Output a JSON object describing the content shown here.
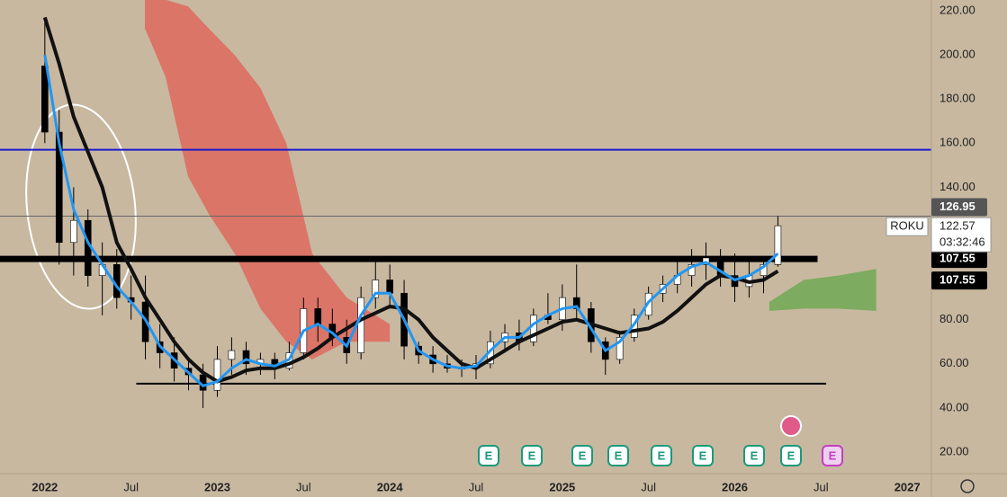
{
  "chart_data": {
    "type": "candlestick",
    "symbol": "ROKU",
    "countdown": "03:32:46",
    "x": [
      2022,
      2022.083,
      2022.167,
      2022.25,
      2022.333,
      2022.417,
      2022.5,
      2022.583,
      2022.667,
      2022.75,
      2022.833,
      2022.917,
      2023,
      2023.083,
      2023.167,
      2023.25,
      2023.333,
      2023.417,
      2023.5,
      2023.583,
      2023.667,
      2023.75,
      2023.833,
      2023.917,
      2024,
      2024.083,
      2024.167,
      2024.25,
      2024.333,
      2024.417,
      2024.5,
      2024.583,
      2024.667,
      2024.75,
      2024.833,
      2024.917,
      2025,
      2025.083,
      2025.167,
      2025.25,
      2025.333,
      2025.417,
      2025.5,
      2025.583,
      2025.667,
      2025.75,
      2025.833,
      2025.917,
      2026,
      2026.083,
      2026.167,
      2026.25
    ],
    "open": [
      195,
      165,
      115,
      125,
      100,
      105,
      90,
      88,
      70,
      65,
      58,
      55,
      48,
      62,
      66,
      60,
      62,
      58,
      65,
      85,
      78,
      72,
      65,
      90,
      98,
      92,
      68,
      64,
      60,
      58,
      58,
      60,
      70,
      74,
      70,
      82,
      80,
      90,
      85,
      70,
      62,
      72,
      82,
      92,
      96,
      100,
      105,
      108,
      100,
      95,
      100,
      105
    ],
    "high": [
      215,
      175,
      140,
      130,
      115,
      112,
      100,
      100,
      78,
      72,
      62,
      60,
      68,
      72,
      70,
      65,
      65,
      70,
      90,
      90,
      85,
      80,
      95,
      108,
      105,
      98,
      70,
      68,
      64,
      62,
      64,
      75,
      78,
      80,
      85,
      92,
      96,
      105,
      88,
      72,
      75,
      85,
      95,
      100,
      108,
      112,
      115,
      112,
      110,
      108,
      108,
      127
    ],
    "low": [
      160,
      105,
      100,
      95,
      82,
      85,
      80,
      62,
      58,
      52,
      48,
      40,
      45,
      55,
      55,
      55,
      53,
      57,
      62,
      70,
      68,
      60,
      62,
      85,
      85,
      62,
      60,
      56,
      56,
      54,
      53,
      58,
      65,
      66,
      68,
      78,
      75,
      80,
      65,
      55,
      60,
      70,
      80,
      88,
      92,
      95,
      98,
      95,
      88,
      90,
      92,
      104
    ],
    "close": [
      165,
      115,
      125,
      100,
      105,
      90,
      88,
      70,
      65,
      58,
      55,
      48,
      62,
      66,
      60,
      62,
      58,
      65,
      85,
      78,
      72,
      65,
      90,
      98,
      92,
      68,
      64,
      60,
      58,
      58,
      60,
      70,
      74,
      70,
      82,
      80,
      90,
      85,
      70,
      62,
      72,
      82,
      92,
      96,
      100,
      105,
      108,
      100,
      95,
      100,
      105,
      122.57
    ],
    "up_color": "#ffffff",
    "down_color": "#000000",
    "series": [
      {
        "color": "#111111",
        "values": [
          217,
          196,
          172,
          156,
          140,
          115,
          103,
          90,
          80,
          70,
          62,
          56,
          52,
          54,
          57,
          58,
          58,
          60,
          63,
          67,
          72,
          76,
          80,
          83,
          86,
          85,
          80,
          72,
          66,
          60,
          58,
          62,
          66,
          70,
          73,
          76,
          79,
          80,
          78,
          76,
          74,
          75,
          76,
          79,
          84,
          90,
          96,
          100,
          99,
          97,
          98,
          102
        ]
      },
      {
        "color": "#2196f3",
        "values": [
          200,
          160,
          130,
          115,
          105,
          95,
          88,
          80,
          68,
          62,
          56,
          50,
          52,
          58,
          62,
          60,
          59,
          62,
          75,
          78,
          74,
          68,
          82,
          92,
          92,
          80,
          66,
          62,
          59,
          58,
          59,
          66,
          72,
          72,
          78,
          82,
          85,
          86,
          76,
          66,
          70,
          78,
          88,
          94,
          100,
          104,
          106,
          102,
          98,
          100,
          104,
          110
        ]
      }
    ],
    "clouds": [
      {
        "color": "#e0645a",
        "x": [
          2022.58,
          2022.7,
          2022.83,
          2022.95,
          2023.1,
          2023.25,
          2023.4,
          2023.55,
          2023.75,
          2024.0
        ],
        "upper": [
          228,
          225,
          222,
          212,
          200,
          185,
          160,
          110,
          90,
          78
        ],
        "lower": [
          212,
          190,
          145,
          128,
          110,
          85,
          70,
          62,
          70,
          70
        ]
      },
      {
        "color": "#6aa84f",
        "x": [
          2026.2,
          2026.4,
          2026.6,
          2026.82
        ],
        "upper": [
          88,
          98,
          100,
          103
        ],
        "lower": [
          84,
          85,
          85,
          84
        ]
      }
    ],
    "hlines": [
      {
        "value": 157,
        "color": "#1a1acc",
        "width": 2,
        "x_from": 2021.74,
        "x_to": 2027.14
      },
      {
        "value": 126.95,
        "color": "#666666",
        "width": 1,
        "x_from": 2021.74,
        "x_to": 2027.14
      },
      {
        "value": 107.55,
        "color": "#000000",
        "width": 7,
        "x_from": 2021.74,
        "x_to": 2026.48
      },
      {
        "value": 51,
        "color": "#000000",
        "width": 2,
        "x_from": 2022.53,
        "x_to": 2026.53
      }
    ],
    "price_markers": [
      126.95,
      107.55,
      107.55
    ],
    "price_marker_colors": [
      "#555555",
      "#000000",
      "#000000"
    ],
    "events": [
      "E",
      "E",
      "E",
      "E",
      "E",
      "E",
      "E",
      "E",
      "E"
    ],
    "xlim": [
      2021.74,
      2027.14
    ],
    "ylim": [
      20,
      220
    ],
    "yticks": [
      {
        "value": 20,
        "label": "20.00"
      },
      {
        "value": 40,
        "label": "40.00"
      },
      {
        "value": 60,
        "label": "60.00"
      },
      {
        "value": 80,
        "label": "80.00"
      },
      {
        "value": 140,
        "label": "140.00"
      },
      {
        "value": 160,
        "label": "160.00"
      },
      {
        "value": 180,
        "label": "180.00"
      },
      {
        "value": 200,
        "label": "200.00"
      },
      {
        "value": 220,
        "label": "220.00"
      }
    ],
    "xticks": [
      {
        "value": 2022,
        "label": "2022"
      },
      {
        "value": 2022.5,
        "label": "Jul"
      },
      {
        "value": 2023,
        "label": "2023"
      },
      {
        "value": 2023.5,
        "label": "Jul"
      },
      {
        "value": 2024,
        "label": "2024"
      },
      {
        "value": 2024.5,
        "label": "Jul"
      },
      {
        "value": 2025,
        "label": "2025"
      },
      {
        "value": 2025.5,
        "label": "Jul"
      },
      {
        "value": 2026,
        "label": "2026"
      },
      {
        "value": 2026.5,
        "label": "Jul"
      },
      {
        "value": 2027,
        "label": "2027"
      }
    ],
    "grid": false
  }
}
